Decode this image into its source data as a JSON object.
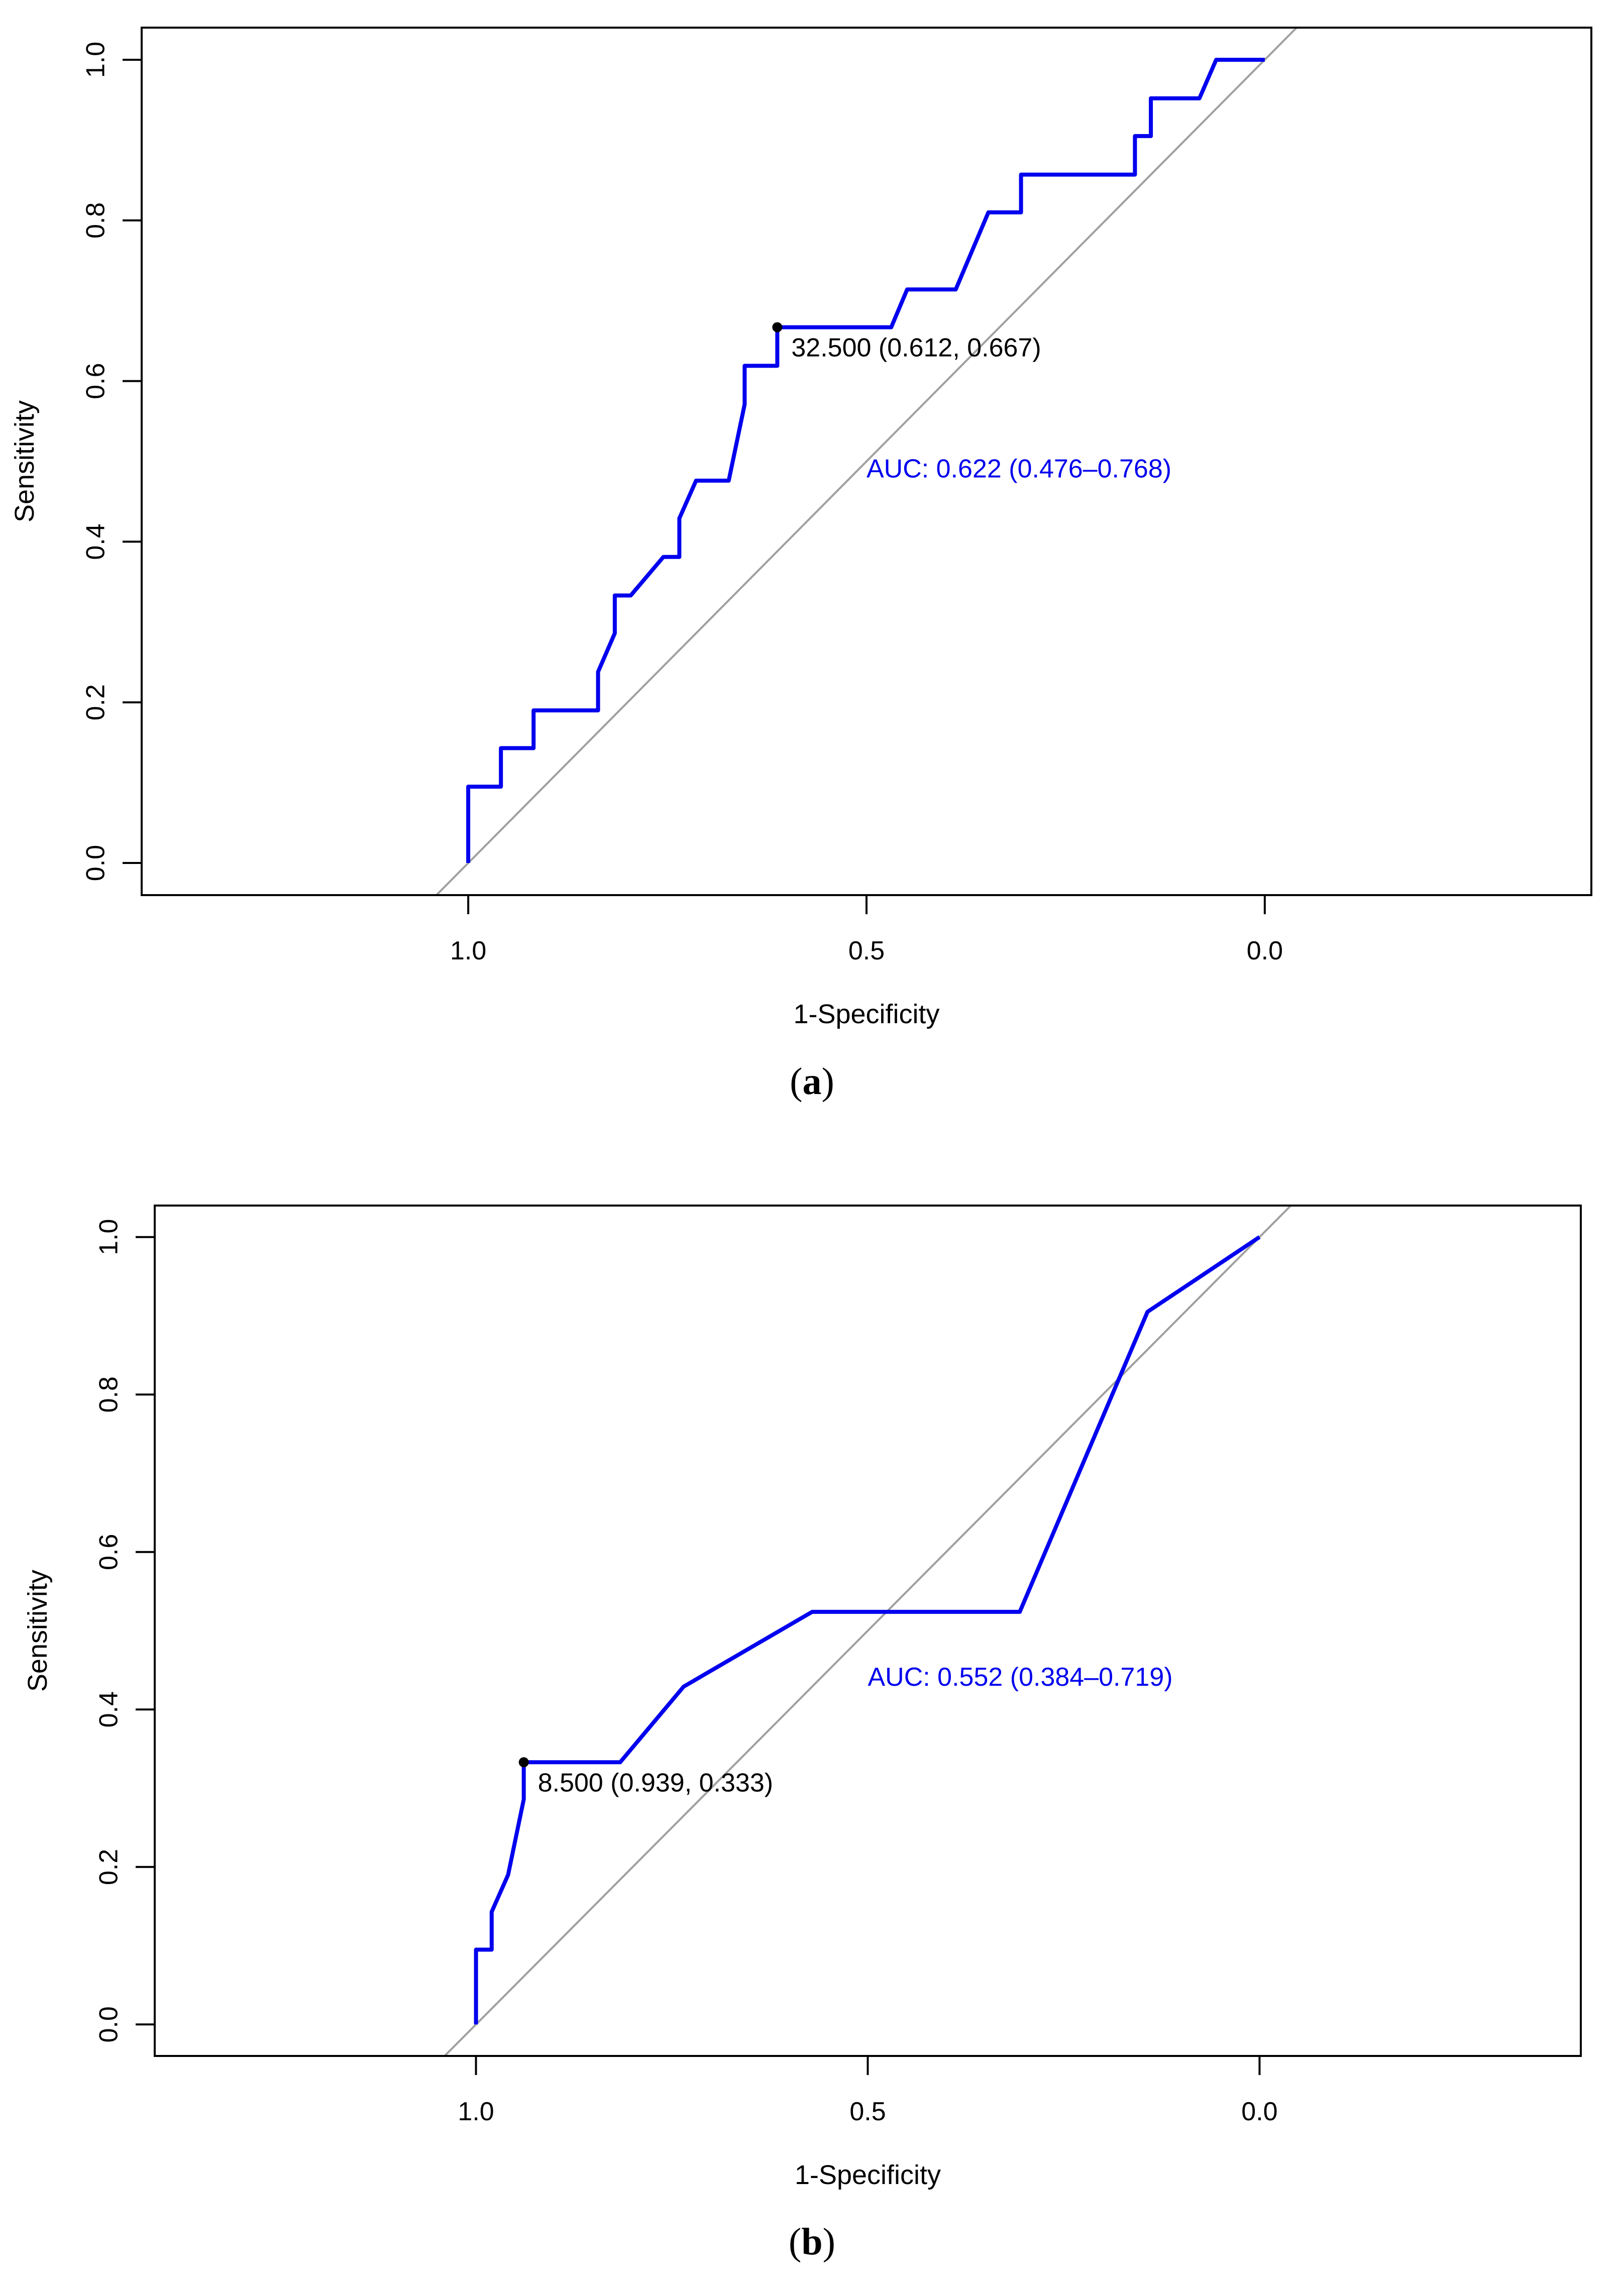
{
  "chart_data": [
    {
      "type": "line",
      "panel_label": "a",
      "xlabel": "1-Specificity",
      "ylabel": "Sensitivity",
      "x_reversed": true,
      "xlim": [
        1.41,
        -0.41
      ],
      "ylim": [
        -0.04,
        1.04
      ],
      "x_ticks": [
        1.0,
        0.5,
        0.0
      ],
      "x_tick_labels": [
        "1.0",
        "0.5",
        "0.0"
      ],
      "y_ticks": [
        0.0,
        0.2,
        0.4,
        0.6,
        0.8,
        1.0
      ],
      "y_tick_labels": [
        "0.0",
        "0.2",
        "0.4",
        "0.6",
        "0.8",
        "1.0"
      ],
      "colors": {
        "roc": "#0000ee",
        "diagonal": "#a0a0a0",
        "axis": "#000000",
        "text": "#000000"
      },
      "series": [
        {
          "name": "ROC",
          "x": [
            1.0,
            1.0,
            0.959,
            0.959,
            0.918,
            0.918,
            0.837,
            0.837,
            0.816,
            0.816,
            0.796,
            0.755,
            0.735,
            0.735,
            0.714,
            0.673,
            0.653,
            0.653,
            0.612,
            0.612,
            0.469,
            0.449,
            0.388,
            0.347,
            0.306,
            0.306,
            0.163,
            0.163,
            0.143,
            0.143,
            0.082,
            0.061,
            0.0
          ],
          "y": [
            0.0,
            0.095,
            0.095,
            0.143,
            0.143,
            0.19,
            0.19,
            0.238,
            0.286,
            0.333,
            0.333,
            0.381,
            0.381,
            0.429,
            0.476,
            0.476,
            0.571,
            0.619,
            0.619,
            0.667,
            0.667,
            0.714,
            0.714,
            0.81,
            0.81,
            0.857,
            0.857,
            0.905,
            0.905,
            0.952,
            0.952,
            1.0,
            1.0
          ]
        }
      ],
      "threshold_point": {
        "x": 0.612,
        "y": 0.667,
        "label": "32.500 (0.612, 0.667)"
      },
      "auc_label": "AUC: 0.622 (0.476–0.768)",
      "auc_label_anchor": {
        "x": 0.5,
        "y": 0.48
      },
      "reference_line": "diagonal"
    },
    {
      "type": "line",
      "panel_label": "b",
      "xlabel": "1-Specificity",
      "ylabel": "Sensitivity",
      "x_reversed": true,
      "xlim": [
        1.41,
        -0.41
      ],
      "ylim": [
        -0.04,
        1.04
      ],
      "x_ticks": [
        1.0,
        0.5,
        0.0
      ],
      "x_tick_labels": [
        "1.0",
        "0.5",
        "0.0"
      ],
      "y_ticks": [
        0.0,
        0.2,
        0.4,
        0.6,
        0.8,
        1.0
      ],
      "y_tick_labels": [
        "0.0",
        "0.2",
        "0.4",
        "0.6",
        "0.8",
        "1.0"
      ],
      "colors": {
        "roc": "#0000ee",
        "diagonal": "#a0a0a0",
        "axis": "#000000",
        "text": "#000000"
      },
      "series": [
        {
          "name": "ROC",
          "x": [
            1.0,
            1.0,
            0.98,
            0.98,
            0.959,
            0.939,
            0.939,
            0.816,
            0.735,
            0.571,
            0.306,
            0.143,
            0.0
          ],
          "y": [
            0.0,
            0.095,
            0.095,
            0.143,
            0.19,
            0.286,
            0.333,
            0.333,
            0.429,
            0.524,
            0.524,
            0.905,
            1.0
          ]
        }
      ],
      "threshold_point": {
        "x": 0.939,
        "y": 0.333,
        "label": "8.500 (0.939, 0.333)"
      },
      "auc_label": "AUC: 0.552 (0.384–0.719)",
      "auc_label_anchor": {
        "x": 0.5,
        "y": 0.43
      },
      "reference_line": "diagonal"
    }
  ],
  "captions": {
    "a": "a",
    "b": "b"
  }
}
